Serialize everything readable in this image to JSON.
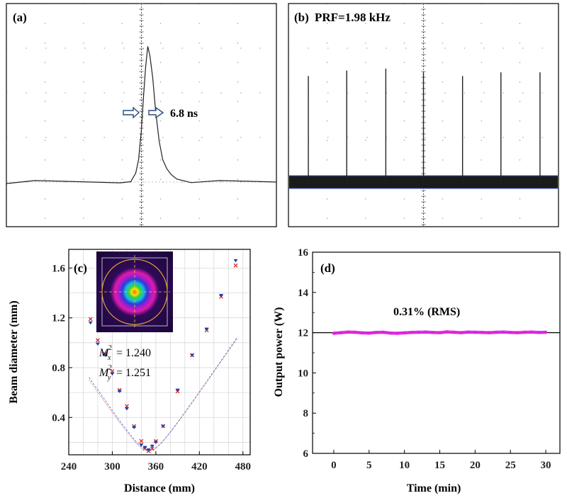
{
  "chart_data": [
    {
      "panel": "(a)",
      "type": "line",
      "title": "",
      "annotation": "6.8 ns",
      "grid": "dotted",
      "x": [
        0,
        40,
        80,
        120,
        160,
        175,
        182,
        186,
        190,
        193,
        196,
        199,
        202,
        206,
        210,
        215,
        220,
        226,
        232,
        240,
        260,
        300,
        340,
        380
      ],
      "y": [
        0.24,
        0.24,
        0.24,
        0.24,
        0.24,
        0.25,
        0.28,
        0.36,
        0.52,
        0.7,
        0.86,
        0.97,
        0.92,
        0.8,
        0.62,
        0.46,
        0.36,
        0.31,
        0.28,
        0.26,
        0.245,
        0.24,
        0.24,
        0.24
      ],
      "xlim": [
        0,
        380
      ],
      "ylim": [
        0,
        1.2
      ]
    },
    {
      "panel": "(b)",
      "type": "line",
      "title": "PRF=1.98 kHz",
      "grid": "dotted",
      "baseline": 0.24,
      "pulse_times": [
        28,
        82,
        137,
        190,
        245,
        299,
        354
      ],
      "pulse_peaks": [
        0.81,
        0.84,
        0.85,
        0.83,
        0.81,
        0.83,
        0.83
      ],
      "xlim": [
        0,
        380
      ],
      "ylim": [
        0,
        1.2
      ]
    },
    {
      "panel": "(c)",
      "type": "scatter",
      "xlabel": "Distance (mm)",
      "ylabel": "Beam diameter (mm)",
      "xticks": [
        240,
        300,
        360,
        420,
        480
      ],
      "yticks": [
        0.4,
        0.8,
        1.2,
        1.6
      ],
      "xlim": [
        240,
        490
      ],
      "ylim": [
        0.1,
        1.75
      ],
      "grid": true,
      "annotations": [
        "M",
        "x",
        "2",
        "= 1.240",
        "M",
        "y",
        "2",
        "= 1.251"
      ],
      "x": [
        270,
        280,
        290,
        300,
        310,
        320,
        330,
        340,
        345,
        350,
        355,
        360,
        370,
        390,
        410,
        430,
        450,
        470
      ],
      "series": [
        {
          "name": "x",
          "color": "#d62728",
          "values": [
            1.19,
            1.02,
            0.91,
            0.77,
            0.62,
            0.49,
            0.33,
            0.21,
            0.15,
            0.13,
            0.15,
            0.21,
            0.33,
            0.61,
            0.9,
            1.1,
            1.37,
            1.62
          ]
        },
        {
          "name": "y",
          "color": "#1f3fb4",
          "values": [
            1.16,
            0.99,
            0.9,
            0.75,
            0.61,
            0.47,
            0.32,
            0.18,
            0.16,
            0.14,
            0.17,
            0.2,
            0.33,
            0.62,
            0.9,
            1.11,
            1.38,
            1.66
          ]
        }
      ]
    },
    {
      "panel": "(d)",
      "type": "line",
      "xlabel": "Time (min)",
      "ylabel": "Output power (W)",
      "annotation": "0.31% (RMS)",
      "xticks": [
        0,
        5,
        10,
        15,
        20,
        25,
        30
      ],
      "yticks": [
        6,
        8,
        10,
        12,
        14,
        16
      ],
      "xlim": [
        -3,
        32
      ],
      "ylim": [
        6,
        16
      ],
      "reference_line": 12,
      "series_color": "#e020e0",
      "x": [
        0,
        1,
        2,
        3,
        4,
        5,
        6,
        7,
        8,
        9,
        10,
        11,
        12,
        13,
        14,
        15,
        16,
        17,
        18,
        19,
        20,
        21,
        22,
        23,
        24,
        25,
        26,
        27,
        28,
        29,
        30
      ],
      "values": [
        11.97,
        12.0,
        12.03,
        12.02,
        11.99,
        11.98,
        12.01,
        12.02,
        11.98,
        11.97,
        11.99,
        12.01,
        12.02,
        12.03,
        12.01,
        12.0,
        12.04,
        12.02,
        12.0,
        12.03,
        12.02,
        12.01,
        12.0,
        12.02,
        12.03,
        12.01,
        12.0,
        12.02,
        12.03,
        12.01,
        12.02
      ]
    }
  ]
}
